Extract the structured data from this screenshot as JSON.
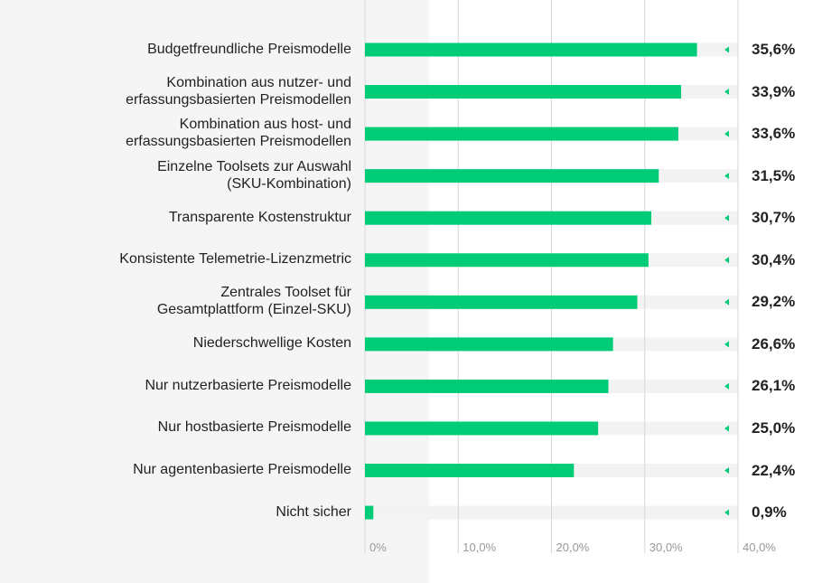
{
  "chart_data": {
    "type": "bar",
    "orientation": "horizontal",
    "categories": [
      "Budgetfreundliche Preismodelle",
      "Kombination aus nutzer- und\nerfassungsbasierten Preismodellen",
      "Kombination aus host- und\nerfassungsbasierten Preismodellen",
      "Einzelne Toolsets zur Auswahl\n(SKU-Kombination)",
      "Transparente Kostenstruktur",
      "Konsistente Telemetrie-Lizenzmetric",
      "Zentrales Toolset für\nGesamtplattform (Einzel-SKU)",
      "Niederschwellige Kosten",
      "Nur nutzerbasierte Preismodelle",
      "Nur hostbasierte Preismodelle",
      "Nur agentenbasierte Preismodelle",
      "Nicht sicher"
    ],
    "values": [
      35.6,
      33.9,
      33.6,
      31.5,
      30.7,
      30.4,
      29.2,
      26.6,
      26.1,
      25.0,
      22.4,
      0.9
    ],
    "value_labels": [
      "35,6%",
      "33,9%",
      "33,6%",
      "31,5%",
      "30,7%",
      "30,4%",
      "29,2%",
      "26,6%",
      "26,1%",
      "25,0%",
      "22,4%",
      "0,9%"
    ],
    "xlim": [
      0,
      40
    ],
    "tick_labels": [
      "0%",
      "10,0%",
      "20,0%",
      "30,0%",
      "40,0%"
    ],
    "ticks": [
      0,
      10,
      20,
      30,
      40
    ],
    "grid": true,
    "colors": {
      "bar": "#00cc78",
      "track": "#f3f3f3",
      "grid": "#d6d6d6",
      "marker": "#00cc78"
    }
  }
}
